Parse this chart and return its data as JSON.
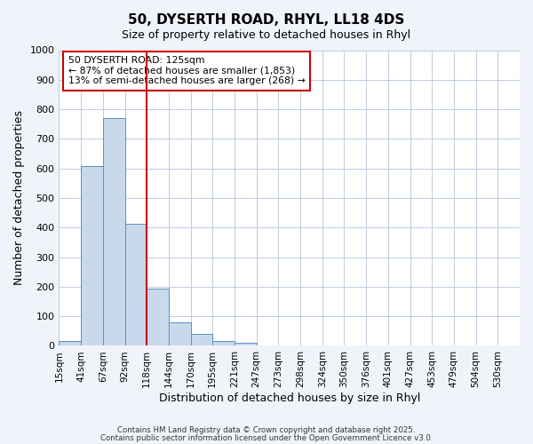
{
  "title": "50, DYSERTH ROAD, RHYL, LL18 4DS",
  "subtitle": "Size of property relative to detached houses in Rhyl",
  "xlabel": "Distribution of detached houses by size in Rhyl",
  "ylabel": "Number of detached properties",
  "bin_labels": [
    "15sqm",
    "41sqm",
    "67sqm",
    "92sqm",
    "118sqm",
    "144sqm",
    "170sqm",
    "195sqm",
    "221sqm",
    "247sqm",
    "273sqm",
    "298sqm",
    "324sqm",
    "350sqm",
    "376sqm",
    "401sqm",
    "427sqm",
    "453sqm",
    "479sqm",
    "504sqm",
    "530sqm"
  ],
  "bar_values": [
    15,
    608,
    770,
    412,
    193,
    78,
    40,
    17,
    10,
    0,
    0,
    0,
    0,
    0,
    0,
    0,
    0,
    0,
    0,
    0,
    0
  ],
  "bar_color": "#c9d9ec",
  "bar_edge_color": "#5a8fc2",
  "vline_x_index": 4,
  "vline_color": "#cc0000",
  "annotation_text": "50 DYSERTH ROAD: 125sqm\n← 87% of detached houses are smaller (1,853)\n13% of semi-detached houses are larger (268) →",
  "annotation_box_color": "#ffffff",
  "annotation_box_edge_color": "#cc0000",
  "ylim": [
    0,
    1000
  ],
  "yticks": [
    0,
    100,
    200,
    300,
    400,
    500,
    600,
    700,
    800,
    900,
    1000
  ],
  "footer1": "Contains HM Land Registry data © Crown copyright and database right 2025.",
  "footer2": "Contains public sector information licensed under the Open Government Licence v3.0.",
  "bg_color": "#f0f4fa",
  "plot_bg_color": "#ffffff",
  "grid_color": "#c0cce0"
}
